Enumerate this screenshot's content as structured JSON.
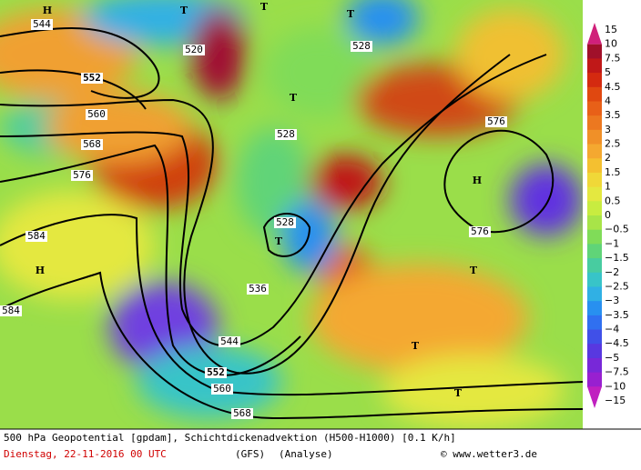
{
  "map": {
    "contour_labels": [
      "544",
      "520",
      "528",
      "552",
      "560",
      "568",
      "576",
      "584",
      "528",
      "536",
      "544",
      "552",
      "560",
      "568",
      "584",
      "576",
      "528",
      "576"
    ],
    "pressure_labels": [
      "H",
      "T",
      "T",
      "T",
      "T",
      "T",
      "H",
      "H",
      "T",
      "T",
      "T"
    ],
    "colorbar": {
      "labels": [
        "15",
        "10",
        "7.5",
        "5",
        "4.5",
        "4",
        "3.5",
        "3",
        "2.5",
        "2",
        "1.5",
        "1",
        "0.5",
        "0",
        "−0.5",
        "−1",
        "−1.5",
        "−2",
        "−2.5",
        "−3",
        "−3.5",
        "−4",
        "−4.5",
        "−5",
        "−7.5",
        "−10",
        "−15"
      ],
      "colors": [
        "#d0207a",
        "#a0102a",
        "#c01818",
        "#d42a10",
        "#e04810",
        "#e86018",
        "#ec7820",
        "#f09028",
        "#f4a830",
        "#f4c030",
        "#f0d838",
        "#e4e840",
        "#c8ec40",
        "#a8e448",
        "#80dc58",
        "#60d478",
        "#48cca0",
        "#38c4c8",
        "#30b0e4",
        "#2890f0",
        "#3070f0",
        "#4050e8",
        "#5838e0",
        "#7828d8",
        "#9820d0",
        "#c020c0"
      ]
    },
    "footer": {
      "title": "500 hPa Geopotential [gpdam], Schichtdickenadvektion (H500-H1000) [0.1 K/h]",
      "date": "Dienstag, 22-11-2016  00 UTC",
      "model": "(GFS)",
      "run": "(Analyse)",
      "credit": "© www.wetter3.de"
    }
  }
}
